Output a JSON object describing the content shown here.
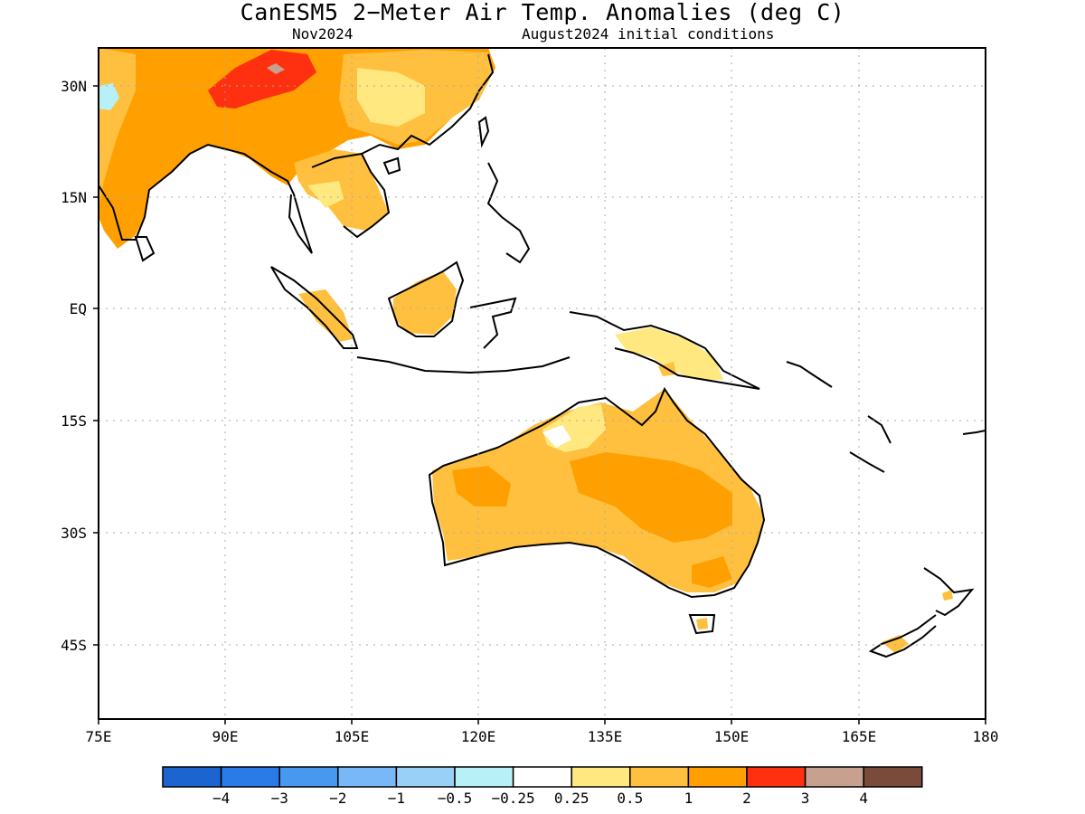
{
  "title": "CanESM5 2−Meter Air Temp. Anomalies (deg C)",
  "subtitle_left": "Nov2024",
  "subtitle_right": "August2024 initial conditions",
  "lon_ticks": [
    "75E",
    "90E",
    "105E",
    "120E",
    "135E",
    "150E",
    "165E",
    "180"
  ],
  "lat_ticks": [
    "30N",
    "15N",
    "EQ",
    "15S",
    "30S",
    "45S"
  ],
  "grid": true,
  "colorbar": {
    "colors": [
      "#1c64d0",
      "#2a7ae8",
      "#4898f0",
      "#78b8f8",
      "#98d0f8",
      "#b8f0f8",
      "#ffffff",
      "#ffe880",
      "#ffc040",
      "#ffa000",
      "#ff3010",
      "#c8a090",
      "#7a4a3a"
    ],
    "labels": [
      "−4",
      "−3",
      "−2",
      "−1",
      "−0.5",
      "−0.25",
      "0.25",
      "0.5",
      "1",
      "2",
      "3",
      "4"
    ]
  },
  "regions": [
    {
      "name": "central-asia-china",
      "level": "1-2",
      "color": "#ffa000"
    },
    {
      "name": "tibet-plateau",
      "level": "2-3",
      "color": "#ff3010"
    },
    {
      "name": "tibet-peak",
      "level": "3-4",
      "color": "#c8a090"
    },
    {
      "name": "east-china",
      "level": "0.5-1",
      "color": "#ffc040"
    },
    {
      "name": "india",
      "level": "1-2",
      "color": "#ffa000"
    },
    {
      "name": "pakistan-cool-spot",
      "level": "-0.5 to -0.25",
      "color": "#b8f0f8"
    },
    {
      "name": "indochina",
      "level": "0.5-1",
      "color": "#ffc040"
    },
    {
      "name": "borneo",
      "level": "0.5-1",
      "color": "#ffc040"
    },
    {
      "name": "sumatra",
      "level": "0.5-1",
      "color": "#ffc040"
    },
    {
      "name": "new-guinea",
      "level": "0.25-0.5",
      "color": "#ffe880"
    },
    {
      "name": "australia",
      "level": "0.5-1",
      "color": "#ffc040"
    },
    {
      "name": "australia-central",
      "level": "1-2",
      "color": "#ffa000"
    },
    {
      "name": "new-zealand",
      "level": "0.5-1",
      "color": "#ffc040"
    }
  ]
}
